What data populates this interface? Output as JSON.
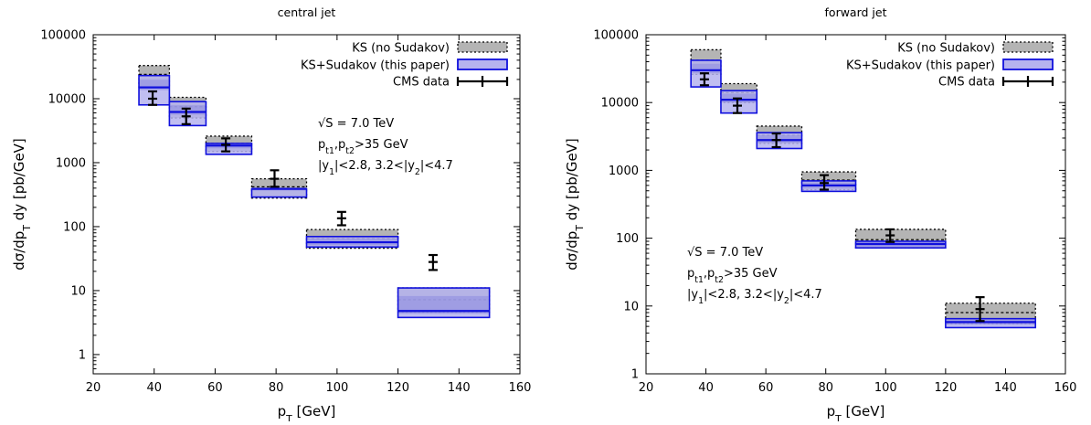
{
  "chart_data": [
    {
      "type": "bar",
      "title": "central jet",
      "xlabel": "p_T [GeV]",
      "ylabel": "dσ/dp_T dy [pb/GeV]",
      "xlim": [
        20,
        160
      ],
      "ylim": [
        0.5,
        100000
      ],
      "yscale": "log",
      "xticks": [
        "20",
        "40",
        "60",
        "80",
        "100",
        "120",
        "140",
        "160"
      ],
      "yticks": [
        "1",
        "10",
        "100",
        "1000",
        "10000",
        "100000"
      ],
      "legend_position": "top-right",
      "legend": [
        "KS (no Sudakov)",
        "KS+Sudakov (this paper)",
        "CMS data"
      ],
      "annotations": [
        "√S = 7.0 TeV",
        "p_t1,p_t2>35 GeV",
        "|y_1|<2.8, 3.2<|y_2|<4.7"
      ],
      "series": [
        {
          "name": "KS (no Sudakov)",
          "style": "grey band",
          "bins": [
            [
              35,
              45
            ],
            [
              45,
              57
            ],
            [
              57,
              72
            ],
            [
              72,
              90
            ],
            [
              90,
              120
            ],
            [
              120,
              150
            ]
          ],
          "central": [
            24000,
            7500,
            2000,
            420,
            65,
            7.2
          ],
          "low": [
            15000,
            5000,
            1500,
            280,
            46,
            4.6
          ],
          "high": [
            33000,
            10500,
            2600,
            560,
            90,
            11
          ]
        },
        {
          "name": "KS+Sudakov (this paper)",
          "style": "blue band",
          "bins": [
            [
              35,
              45
            ],
            [
              45,
              57
            ],
            [
              57,
              72
            ],
            [
              72,
              90
            ],
            [
              90,
              120
            ],
            [
              120,
              150
            ]
          ],
          "central": [
            15000,
            6200,
            1850,
            390,
            57,
            4.8
          ],
          "low": [
            8000,
            3800,
            1350,
            290,
            48,
            3.8
          ],
          "high": [
            23000,
            9000,
            2000,
            390,
            70,
            11
          ]
        },
        {
          "name": "CMS data",
          "style": "points with error bars",
          "x": [
            39.5,
            50.5,
            63.5,
            79.5,
            101.5,
            131.5
          ],
          "y": [
            10000,
            5300,
            1900,
            560,
            135,
            28
          ],
          "yerr_low": [
            8000,
            4000,
            1500,
            420,
            105,
            21
          ],
          "yerr_high": [
            13000,
            7000,
            2400,
            760,
            170,
            36
          ]
        }
      ]
    },
    {
      "type": "bar",
      "title": "forward jet",
      "xlabel": "p_T [GeV]",
      "ylabel": "dσ/dp_T dy [pb/GeV]",
      "xlim": [
        20,
        160
      ],
      "ylim": [
        1,
        100000
      ],
      "yscale": "log",
      "xticks": [
        "20",
        "40",
        "60",
        "80",
        "100",
        "120",
        "140",
        "160"
      ],
      "yticks": [
        "1",
        "10",
        "100",
        "1000",
        "10000",
        "100000"
      ],
      "legend_position": "top-right",
      "legend": [
        "KS (no Sudakov)",
        "KS+Sudakov (this paper)",
        "CMS data"
      ],
      "annotations": [
        "√S = 7.0 TeV",
        "p_t1,p_t2>35 GeV",
        "|y_1|<2.8, 3.2<|y_2|<4.7"
      ],
      "series": [
        {
          "name": "KS (no Sudakov)",
          "style": "grey band",
          "bins": [
            [
              35,
              45
            ],
            [
              45,
              57
            ],
            [
              57,
              72
            ],
            [
              72,
              90
            ],
            [
              90,
              120
            ],
            [
              120,
              150
            ]
          ],
          "central": [
            42000,
            14000,
            3300,
            720,
            95,
            8
          ],
          "low": [
            26000,
            10000,
            2500,
            520,
            72,
            5.5
          ],
          "high": [
            60000,
            19000,
            4500,
            950,
            135,
            11
          ]
        },
        {
          "name": "KS+Sudakov (this paper)",
          "style": "blue band",
          "bins": [
            [
              35,
              45
            ],
            [
              45,
              57
            ],
            [
              57,
              72
            ],
            [
              72,
              90
            ],
            [
              90,
              120
            ],
            [
              120,
              150
            ]
          ],
          "central": [
            30000,
            11000,
            2800,
            600,
            82,
            5.8
          ],
          "low": [
            17000,
            7000,
            2100,
            490,
            72,
            4.8
          ],
          "high": [
            42000,
            15000,
            3600,
            700,
            90,
            6.5
          ]
        },
        {
          "name": "CMS data",
          "style": "points with error bars",
          "x": [
            39.5,
            50.5,
            63.5,
            79.5,
            101.5,
            131.5
          ],
          "y": [
            22000,
            9000,
            2800,
            650,
            110,
            9
          ],
          "yerr_low": [
            18000,
            7000,
            2200,
            520,
            88,
            6
          ],
          "yerr_high": [
            27000,
            11500,
            3500,
            850,
            135,
            13.5
          ]
        }
      ]
    }
  ],
  "style": {
    "grey_fill": "#b4b4b4",
    "blue_fill": "#b5b3ee",
    "blue_inner": "#8d8ae0",
    "blue_edge": "#1010dd",
    "data_color": "#000000"
  }
}
